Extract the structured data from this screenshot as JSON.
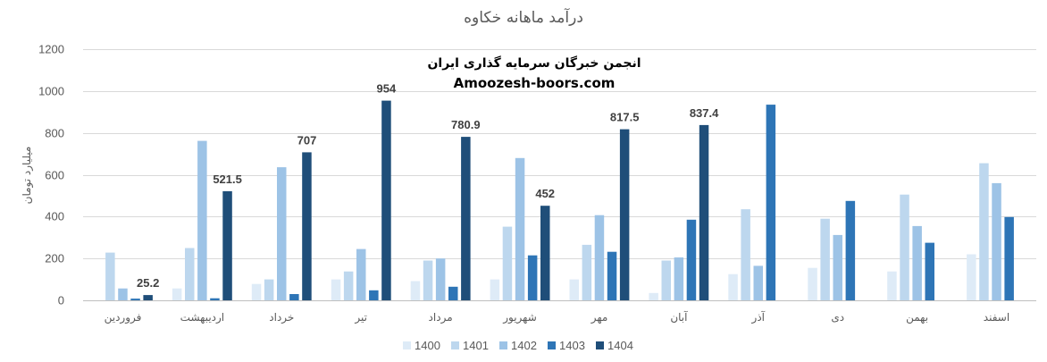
{
  "chart_data": {
    "type": "bar",
    "title": "درآمد ماهانه خکاوه",
    "watermark_line1": "انجمن خبرگان سرمایه گذاری ایران",
    "watermark_line2": "Amoozesh-boors.com",
    "xlabel": "",
    "ylabel": "میلیارد تومان",
    "ylim": [
      0,
      1200
    ],
    "yticks": [
      0,
      200,
      400,
      600,
      800,
      1000,
      1200
    ],
    "grid": true,
    "legend_position": "bottom",
    "categories": [
      "فروردین",
      "اردیبهشت",
      "خرداد",
      "تیر",
      "مرداد",
      "شهریور",
      "مهر",
      "آبان",
      "آذر",
      "دی",
      "بهمن",
      "اسفند"
    ],
    "series": [
      {
        "name": "1400",
        "color": "#deebf7",
        "values": [
          0,
          57,
          78,
          100,
          92,
          100,
          100,
          35,
          125,
          155,
          138,
          220
        ]
      },
      {
        "name": "1401",
        "color": "#bdd7ee",
        "values": [
          228,
          250,
          100,
          138,
          190,
          352,
          265,
          190,
          435,
          390,
          505,
          655
        ]
      },
      {
        "name": "1402",
        "color": "#9dc3e6",
        "values": [
          57,
          762,
          636,
          245,
          200,
          680,
          407,
          205,
          165,
          312,
          355,
          560
        ]
      },
      {
        "name": "1403",
        "color": "#2e75b6",
        "values": [
          8,
          10,
          30,
          48,
          65,
          215,
          232,
          385,
          935,
          475,
          275,
          398
        ]
      },
      {
        "name": "1404",
        "color": "#1f4e79",
        "values": [
          25.2,
          521.5,
          707,
          954,
          780.9,
          452,
          817.5,
          837.4,
          null,
          null,
          null,
          null
        ]
      }
    ],
    "data_labels": {
      "series": "1404",
      "values": [
        "25.2",
        "521.5",
        "707",
        "954",
        "780.9",
        "452",
        "817.5",
        "837.4"
      ]
    }
  }
}
